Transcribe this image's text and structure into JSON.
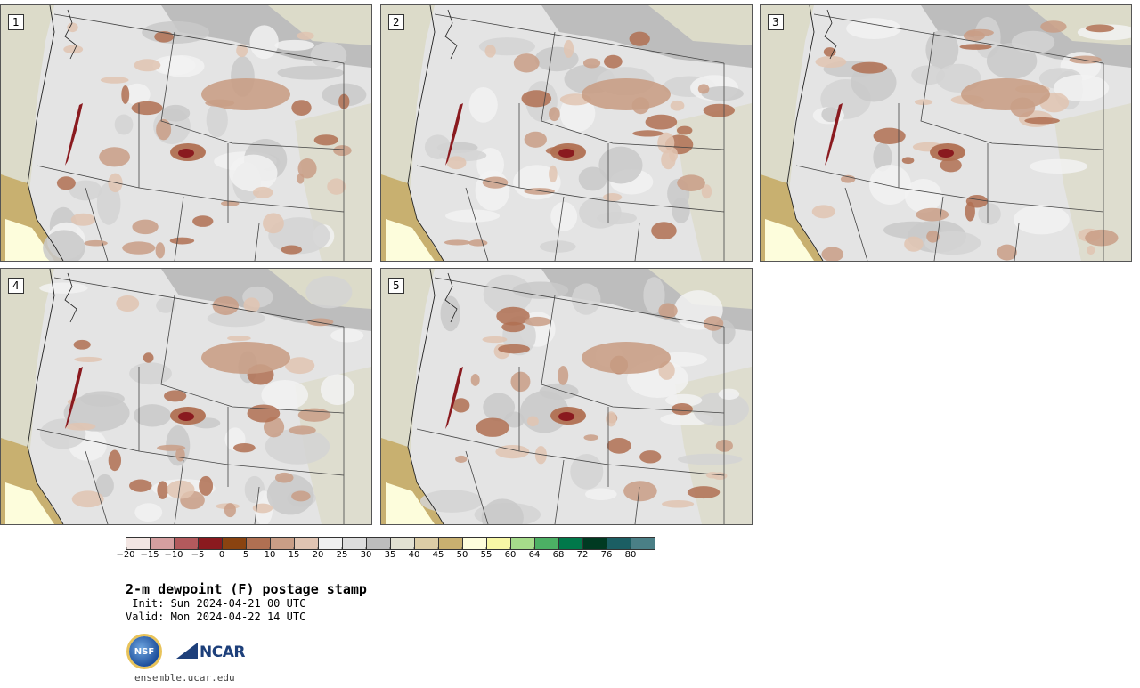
{
  "panels": [
    {
      "label": "1"
    },
    {
      "label": "2"
    },
    {
      "label": "3"
    },
    {
      "label": "4"
    },
    {
      "label": "5"
    }
  ],
  "colorbar": {
    "colors": [
      "#f3e6e3",
      "#d59fa0",
      "#b35a5d",
      "#8a1a1f",
      "#8a4310",
      "#b07052",
      "#c99e86",
      "#e0c4b2",
      "#f0f0f0",
      "#dddddd",
      "#bdbdbd",
      "#e2e1d2",
      "#dccda6",
      "#c8b070",
      "#fdfddc",
      "#f7f7a6",
      "#a6dc8a",
      "#4cb064",
      "#00784a",
      "#003a22",
      "#1b5e63",
      "#4a7f86"
    ],
    "tick_labels": [
      "−20",
      "−15",
      "−10",
      "−5",
      "0",
      "5",
      "10",
      "15",
      "20",
      "25",
      "30",
      "35",
      "40",
      "45",
      "50",
      "55",
      "60",
      "64",
      "68",
      "72",
      "76",
      "80"
    ]
  },
  "title": "2-m dewpoint (F) postage stamp",
  "init": " Init: Sun 2024-04-21 00 UTC",
  "valid": "Valid: Mon 2024-04-22 14 UTC",
  "logos": {
    "nsf": "NSF",
    "ncar": "NCAR"
  },
  "site": "ensemble.ucar.edu"
}
